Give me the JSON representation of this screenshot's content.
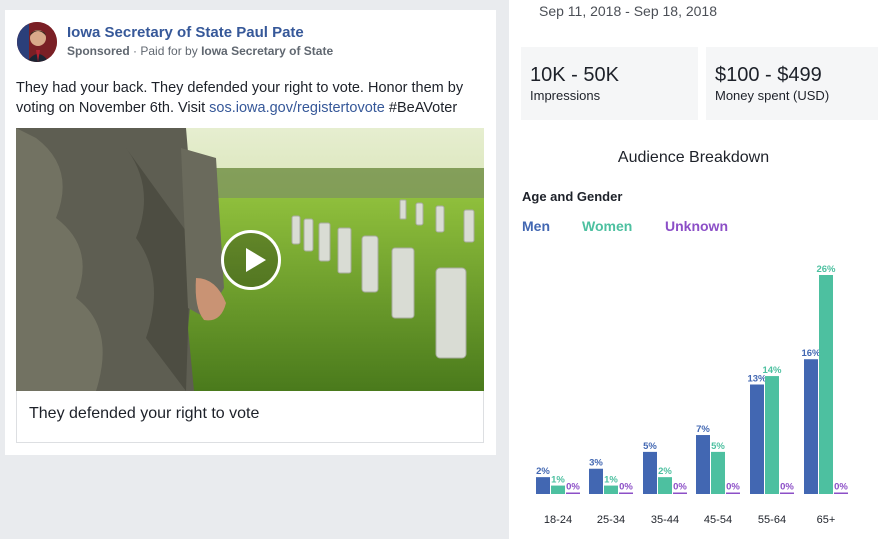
{
  "ad": {
    "page_name": "Iowa Secretary of State Paul Pate",
    "sponsored_label": "Sponsored",
    "paid_for_prefix": "· Paid for by",
    "paid_for_by": "Iowa Secretary of State",
    "body_text": "They had your back. They defended your right to vote. Honor them by voting on November 6th. Visit ",
    "link_text": "sos.iowa.gov/registertovote",
    "hashtag": " #BeAVoter",
    "caption": "They defended your right to vote"
  },
  "stats": {
    "date_range": "Sep 11, 2018 - Sep 18, 2018",
    "impressions_value": "10K - 50K",
    "impressions_label": "Impressions",
    "spend_value": "$100 - $499",
    "spend_label": "Money spent (USD)"
  },
  "audience": {
    "title": "Audience Breakdown",
    "subtitle": "Age and Gender"
  },
  "colors": {
    "men": "#4267b2",
    "women": "#4dc0a0",
    "unknown": "#8c4fc7",
    "link": "#365899"
  },
  "chart_data": {
    "type": "bar",
    "categories": [
      "18-24",
      "25-34",
      "35-44",
      "45-54",
      "55-64",
      "65+"
    ],
    "series": [
      {
        "name": "Men",
        "values": [
          2,
          3,
          5,
          7,
          13,
          16
        ]
      },
      {
        "name": "Women",
        "values": [
          1,
          1,
          2,
          5,
          14,
          26
        ]
      },
      {
        "name": "Unknown",
        "values": [
          0,
          0,
          0,
          0,
          0,
          0
        ]
      }
    ],
    "value_suffix": "%",
    "ylim": [
      0,
      26
    ],
    "legend_position": "top-left"
  }
}
